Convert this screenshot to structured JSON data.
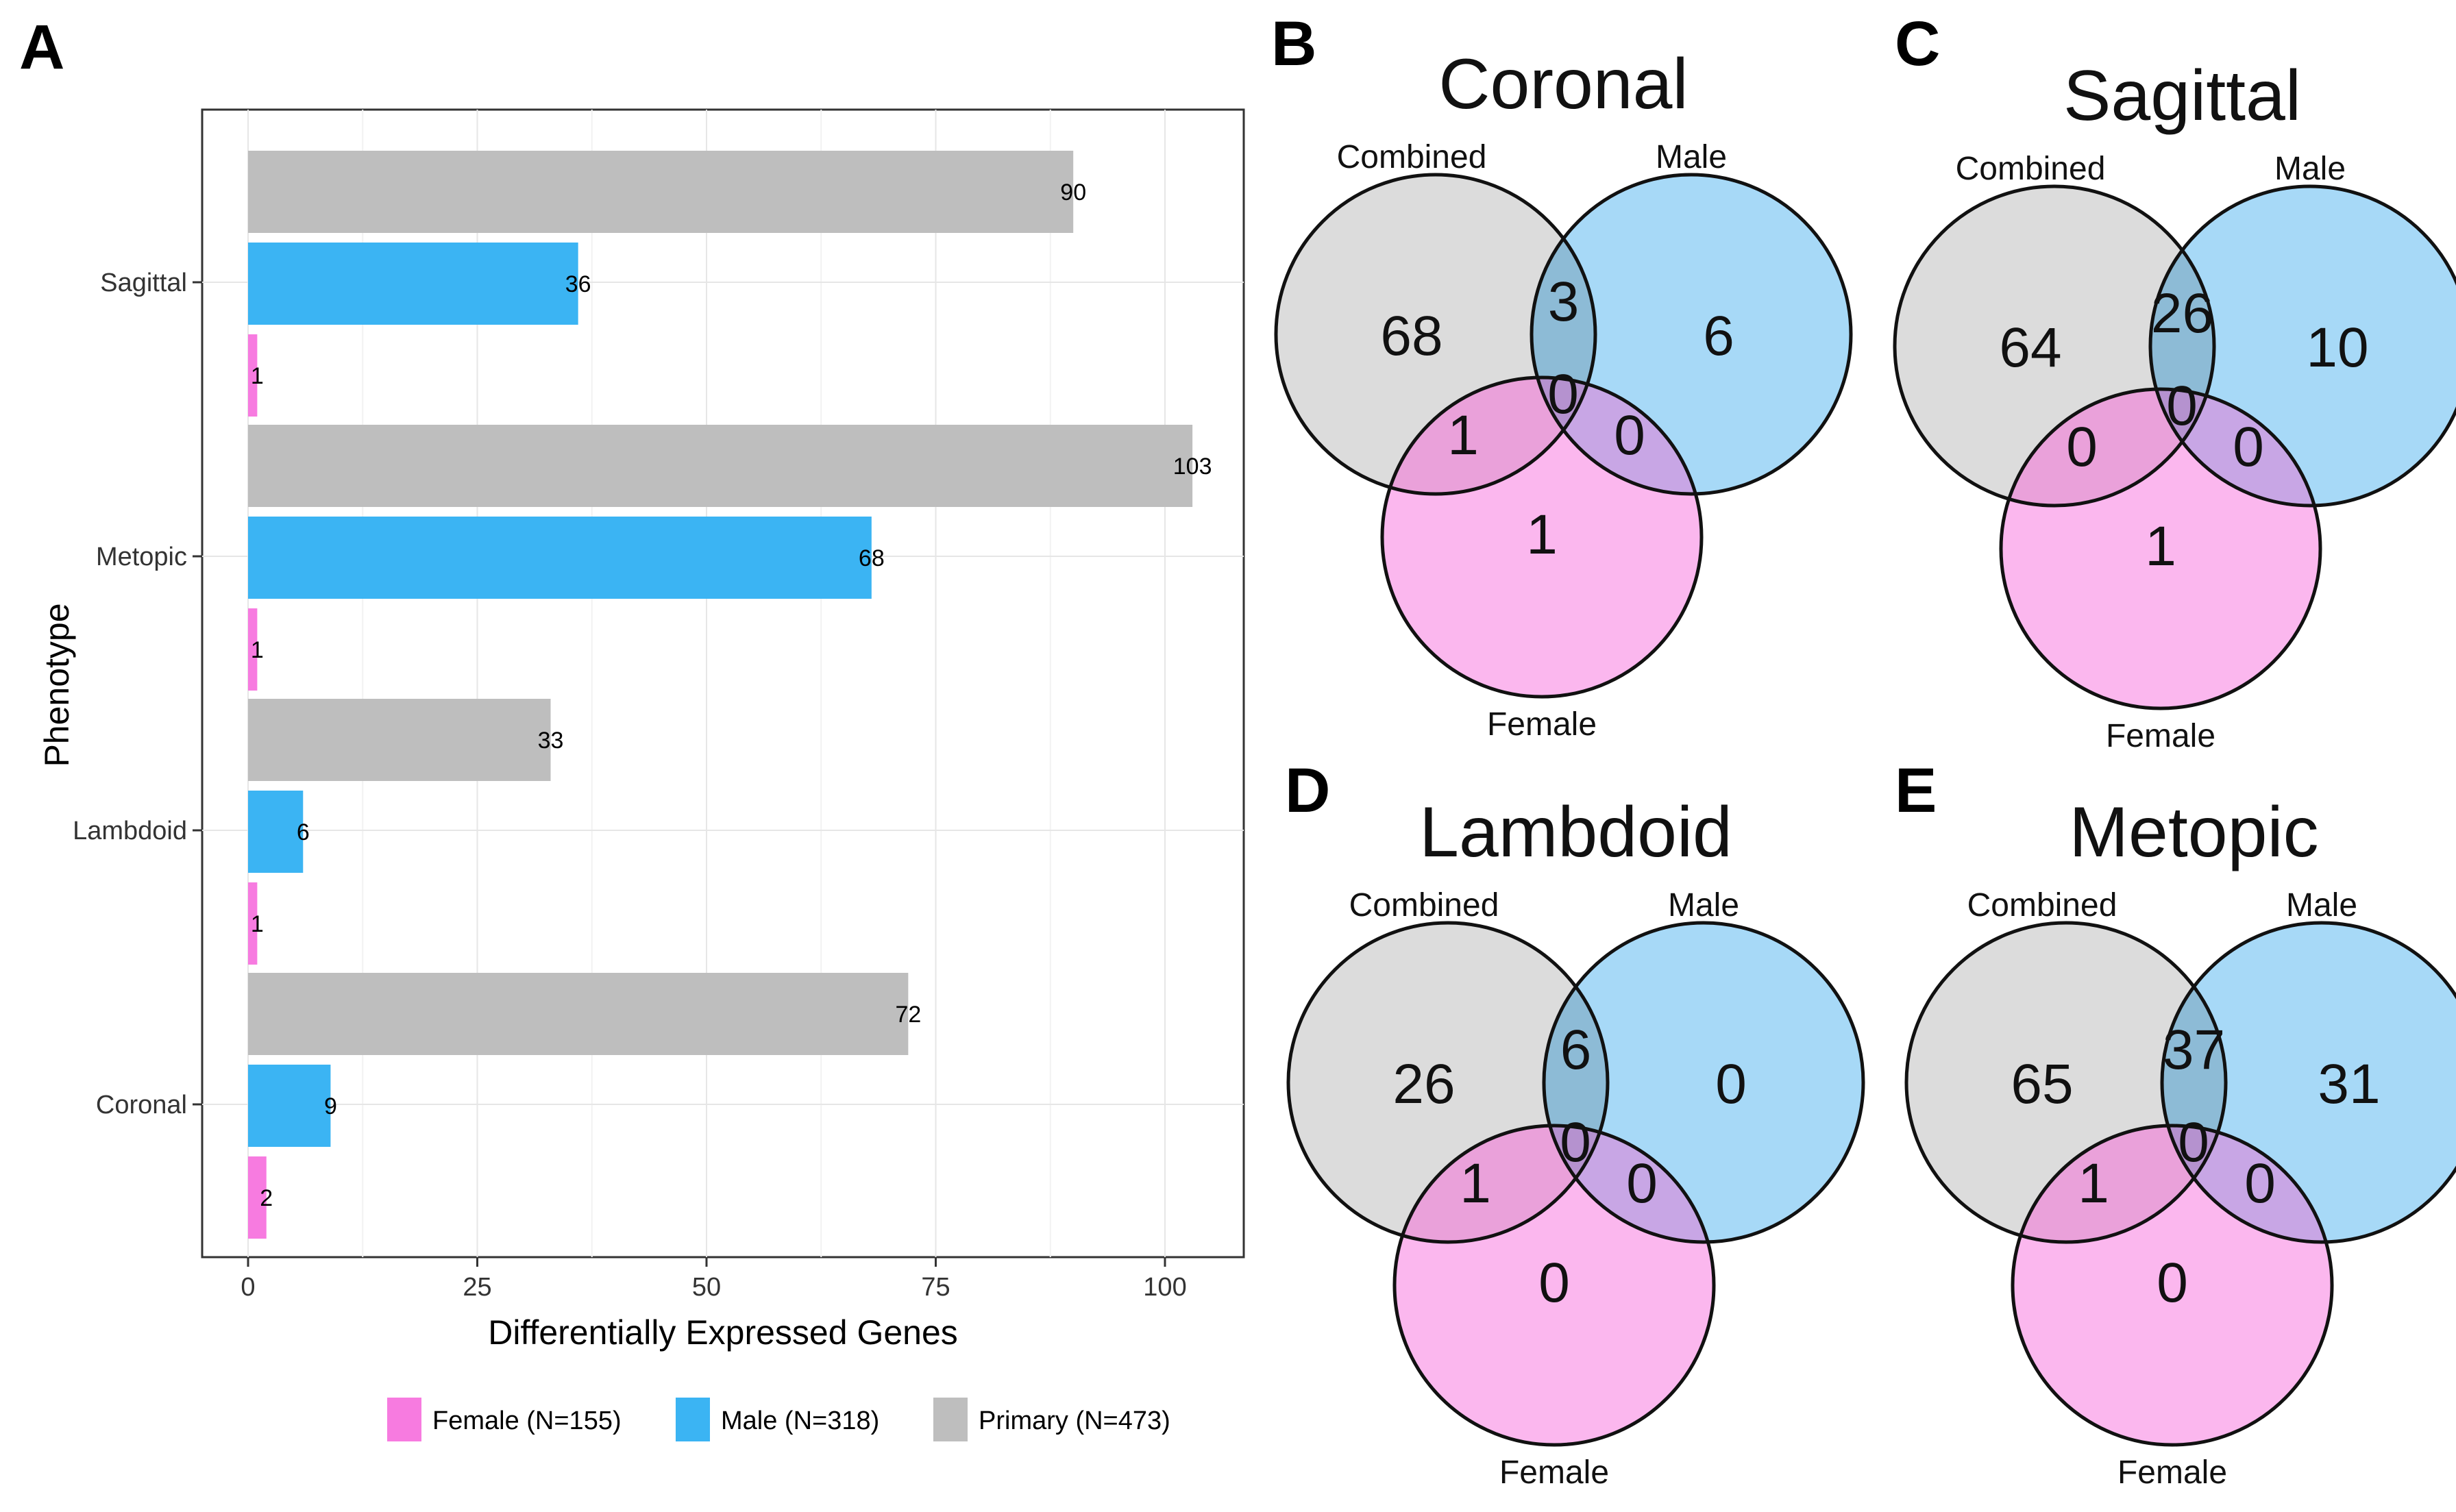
{
  "panels": {
    "A": "A",
    "B": "B",
    "C": "C",
    "D": "D",
    "E": "E"
  },
  "chart_data": {
    "type": "bar",
    "orientation": "horizontal",
    "xlabel": "Differentially Expressed Genes",
    "ylabel": "Phenotype",
    "xlim": [
      0,
      108
    ],
    "xticks": [
      0,
      25,
      50,
      75,
      100
    ],
    "categories": [
      "Sagittal",
      "Metopic",
      "Lambdoid",
      "Coronal"
    ],
    "series": [
      {
        "name": "Primary (N=473)",
        "color": "#BEBEBE",
        "values": [
          90,
          103,
          33,
          72
        ]
      },
      {
        "name": "Male (N=318)",
        "color": "#3BB4F3",
        "values": [
          36,
          68,
          6,
          9
        ]
      },
      {
        "name": "Female (N=155)",
        "color": "#F77BE0",
        "values": [
          1,
          1,
          1,
          2
        ]
      }
    ],
    "legend_order": [
      "Female (N=155)",
      "Male (N=318)",
      "Primary (N=473)"
    ],
    "legend_position": "bottom",
    "grid": true
  },
  "venn_colors": {
    "combined": "#DCDCDC",
    "male": "#A7D9F7",
    "female": "#FBB7EE",
    "combined_male": "#8DBBD6",
    "combined_female": "#EAA1DA",
    "male_female": "#C8A6E5",
    "all": "#B592CF",
    "outline": "#111111"
  },
  "venns": [
    {
      "letter": "B",
      "title": "Coronal",
      "labels": [
        "Combined",
        "Male",
        "Female"
      ],
      "counts": {
        "combined_only": "68",
        "combined_male": "3",
        "male_only": "6",
        "combined_female": "1",
        "all": "0",
        "male_female": "0",
        "female_only": "1"
      }
    },
    {
      "letter": "C",
      "title": "Sagittal",
      "labels": [
        "Combined",
        "Male",
        "Female"
      ],
      "counts": {
        "combined_only": "64",
        "combined_male": "26",
        "male_only": "10",
        "combined_female": "0",
        "all": "0",
        "male_female": "0",
        "female_only": "1"
      }
    },
    {
      "letter": "D",
      "title": "Lambdoid",
      "labels": [
        "Combined",
        "Male",
        "Female"
      ],
      "counts": {
        "combined_only": "26",
        "combined_male": "6",
        "male_only": "0",
        "combined_female": "1",
        "all": "0",
        "male_female": "0",
        "female_only": "0"
      }
    },
    {
      "letter": "E",
      "title": "Metopic",
      "labels": [
        "Combined",
        "Male",
        "Female"
      ],
      "counts": {
        "combined_only": "65",
        "combined_male": "37",
        "male_only": "31",
        "combined_female": "1",
        "all": "0",
        "male_female": "0",
        "female_only": "0"
      }
    }
  ]
}
